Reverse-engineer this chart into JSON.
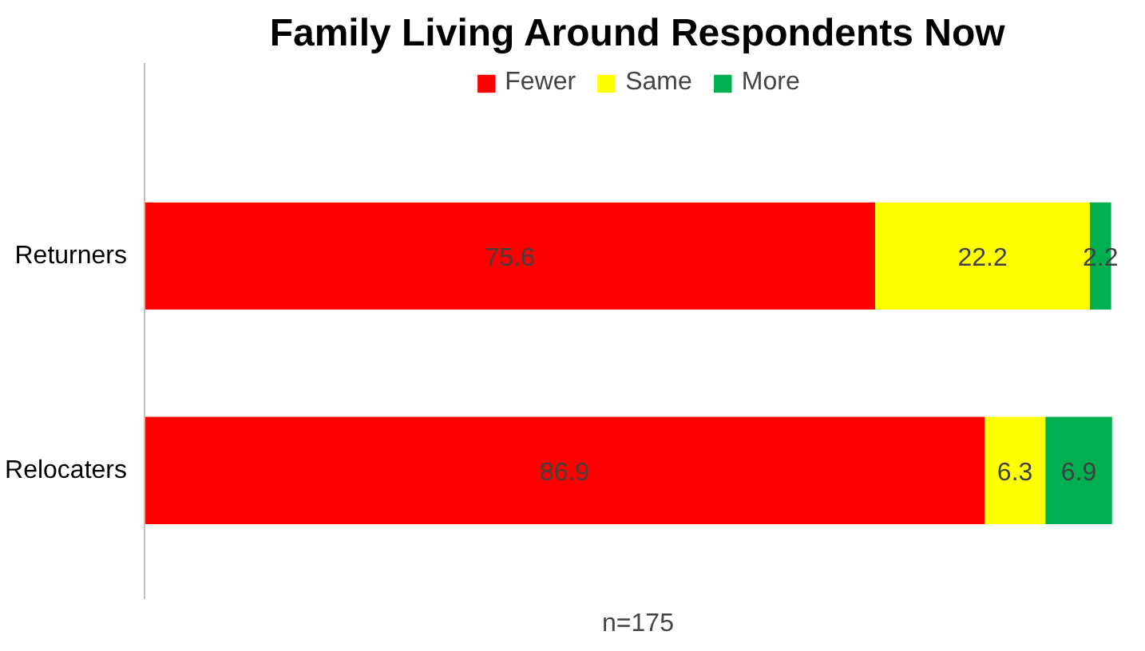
{
  "chart_data": {
    "type": "bar",
    "title": "Family Living Around Respondents Now",
    "orientation": "horizontal",
    "stacked": true,
    "categories": [
      "Returners",
      "Relocaters"
    ],
    "series": [
      {
        "name": "Fewer",
        "color": "#ff0000",
        "values": [
          75.6,
          86.9
        ]
      },
      {
        "name": "Same",
        "color": "#ffff00",
        "values": [
          22.2,
          6.3
        ]
      },
      {
        "name": "More",
        "color": "#00b050",
        "values": [
          2.2,
          6.9
        ]
      }
    ],
    "tick_labels": "y",
    "data_labels": true,
    "legend": "top",
    "grid": false,
    "annotations": [
      "n=175"
    ]
  }
}
